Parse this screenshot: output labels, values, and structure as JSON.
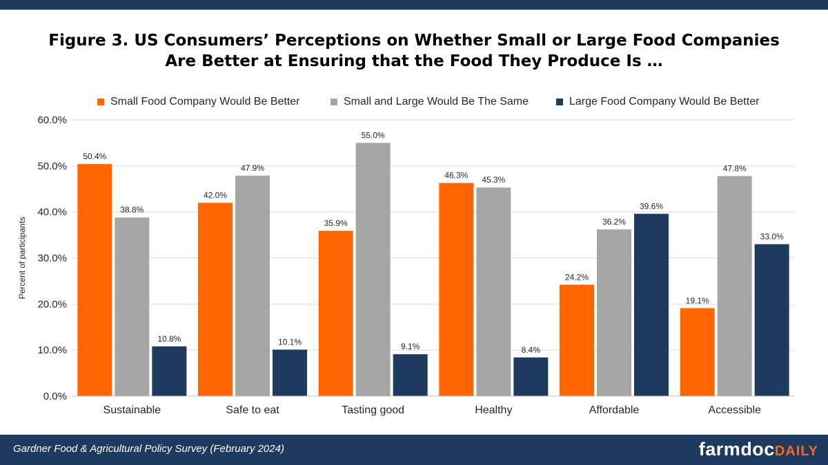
{
  "header": {
    "title_line1": "Figure 3. US Consumers’ Perceptions on Whether Small or Large Food Companies",
    "title_line2": "Are Better at Ensuring that the Food They Produce Is …"
  },
  "footer": {
    "source": "Gardner Food & Agricultural Policy Survey (February 2024)",
    "brand_main": "farmdoc",
    "brand_accent": "DAILY"
  },
  "colors": {
    "small": "#ff6600",
    "same": "#a6a6a6",
    "large": "#1f3a5f",
    "bar_bg": "#1f3a5f"
  },
  "chart_data": {
    "type": "bar",
    "title": "Figure 3. US Consumers’ Perceptions on Whether Small or Large Food Companies Are Better at Ensuring that the Food They Produce Is …",
    "xlabel": "",
    "ylabel": "Percent of participants",
    "ylim": [
      0,
      60
    ],
    "yticks": [
      "0.0%",
      "10.0%",
      "20.0%",
      "30.0%",
      "40.0%",
      "50.0%",
      "60.0%"
    ],
    "grid": true,
    "legend_position": "top",
    "categories": [
      "Sustainable",
      "Safe to eat",
      "Tasting good",
      "Healthy",
      "Affordable",
      "Accessible"
    ],
    "series": [
      {
        "name": "Small Food Company Would Be Better",
        "color": "#ff6600",
        "values": [
          50.4,
          42.0,
          35.9,
          46.3,
          24.2,
          19.1
        ]
      },
      {
        "name": "Small and Large Would Be The Same",
        "color": "#a6a6a6",
        "values": [
          38.8,
          47.9,
          55.0,
          45.3,
          36.2,
          47.8
        ]
      },
      {
        "name": "Large Food Company Would Be Better",
        "color": "#1f3a5f",
        "values": [
          10.8,
          10.1,
          9.1,
          8.4,
          39.6,
          33.0
        ]
      }
    ]
  }
}
